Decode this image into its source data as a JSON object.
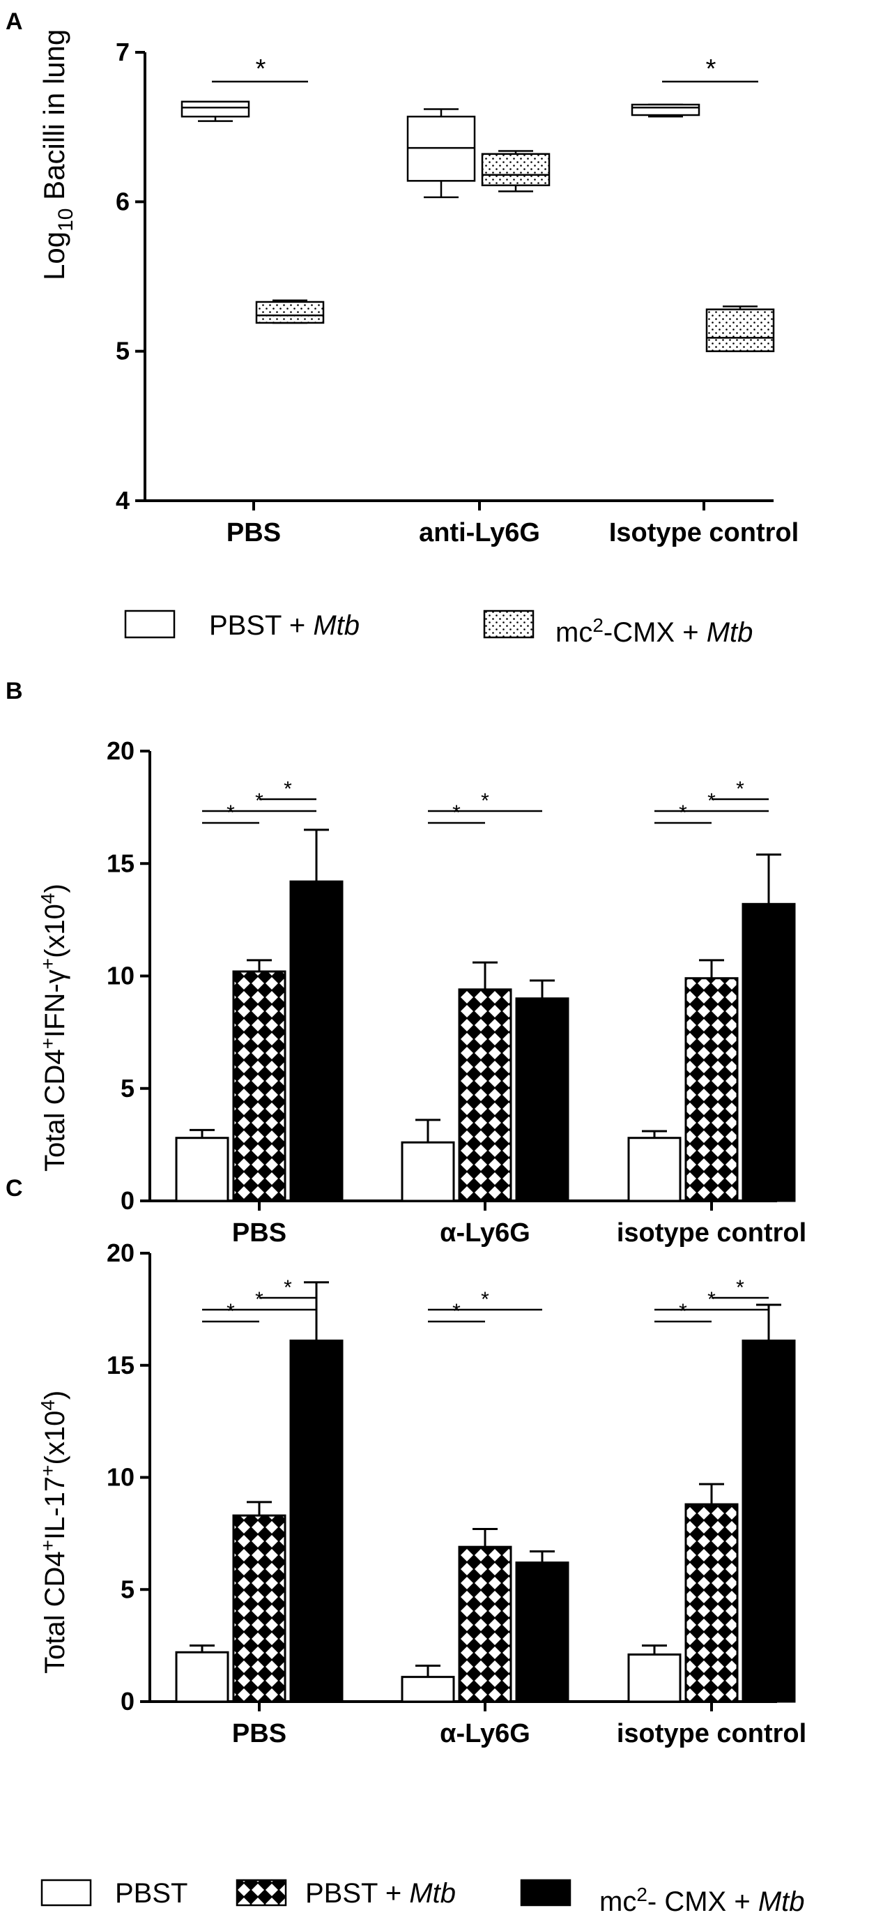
{
  "panels": {
    "A": "A",
    "B": "B",
    "C": "C"
  },
  "colors": {
    "axis": "#000000",
    "pbst": "#ffffff",
    "pbst_mtb": "crosshatch",
    "mc2_cmx_mtb": "#000000"
  },
  "legend_a": {
    "items": [
      {
        "text": "PBST + ",
        "italic": "Mtb",
        "swatch": "open-box"
      },
      {
        "text": "mc",
        "sup": "2",
        "text2": "-CMX + ",
        "italic": "Mtb",
        "swatch": "dotted-box"
      }
    ]
  },
  "legend_bottom": {
    "items": [
      {
        "text": "PBST",
        "swatch": "open"
      },
      {
        "text": "PBST + ",
        "italic": "Mtb",
        "swatch": "crosshatch"
      },
      {
        "text": "mc",
        "sup": "2",
        "text2": "- CMX + ",
        "italic": "Mtb",
        "swatch": "solid"
      }
    ]
  },
  "chart_data": [
    {
      "panel": "A",
      "type": "box",
      "ylabel": "Log10 Bacilli in lung",
      "ylabel_parts": {
        "pre": "Log",
        "sub": "10",
        "post": " Bacilli in lung"
      },
      "ylim": [
        4,
        7
      ],
      "yticks": [
        4,
        5,
        6,
        7
      ],
      "categories": [
        "PBS",
        "anti-Ly6G",
        "Isotype control"
      ],
      "series": [
        {
          "name": "PBST + Mtb",
          "boxes": [
            {
              "min": 6.54,
              "q1": 6.57,
              "median": 6.63,
              "q3": 6.67,
              "max": 6.67
            },
            {
              "min": 6.03,
              "q1": 6.14,
              "median": 6.36,
              "q3": 6.57,
              "max": 6.62
            },
            {
              "min": 6.57,
              "q1": 6.58,
              "median": 6.63,
              "q3": 6.65,
              "max": 6.65
            }
          ]
        },
        {
          "name": "mc2-CMX + Mtb",
          "boxes": [
            {
              "min": 5.19,
              "q1": 5.19,
              "median": 5.24,
              "q3": 5.33,
              "max": 5.34
            },
            {
              "min": 6.07,
              "q1": 6.11,
              "median": 6.18,
              "q3": 6.32,
              "max": 6.34
            },
            {
              "min": 5.0,
              "q1": 5.0,
              "median": 5.09,
              "q3": 5.28,
              "max": 5.3
            }
          ]
        }
      ],
      "significance": [
        {
          "group": 0,
          "label": "*"
        },
        {
          "group": 2,
          "label": "*"
        }
      ]
    },
    {
      "panel": "B",
      "type": "bar",
      "ylabel": "Total CD4+IFN-γ+(x104)",
      "ylabel_parts": {
        "pre": "Total CD4",
        "s1": "+",
        "mid": "IFN-γ",
        "s2": "+",
        "post": "(x10",
        "s3": "4",
        "end": ")"
      },
      "ylim": [
        0,
        20
      ],
      "yticks": [
        0,
        5,
        10,
        15,
        20
      ],
      "categories": [
        "PBS",
        "α-Ly6G",
        "isotype control"
      ],
      "series": [
        {
          "name": "PBST",
          "values": [
            2.8,
            2.6,
            2.8
          ],
          "errors": [
            0.35,
            1.0,
            0.3
          ]
        },
        {
          "name": "PBST + Mtb",
          "values": [
            10.2,
            9.4,
            9.9
          ],
          "errors": [
            0.5,
            1.2,
            0.8
          ]
        },
        {
          "name": "mc2- CMX + Mtb",
          "values": [
            14.2,
            9.0,
            13.2
          ],
          "errors": [
            2.3,
            0.8,
            2.2
          ]
        }
      ],
      "significance": [
        {
          "group": 0,
          "from": 0,
          "to": 1,
          "level": 0,
          "label": "*"
        },
        {
          "group": 0,
          "from": 0,
          "to": 2,
          "level": 1,
          "label": "*"
        },
        {
          "group": 0,
          "from": 1,
          "to": 2,
          "level": 2,
          "label": "*"
        },
        {
          "group": 1,
          "from": 0,
          "to": 1,
          "level": 0,
          "label": "*"
        },
        {
          "group": 1,
          "from": 0,
          "to": 2,
          "level": 1,
          "label": "*"
        },
        {
          "group": 2,
          "from": 0,
          "to": 1,
          "level": 0,
          "label": "*"
        },
        {
          "group": 2,
          "from": 0,
          "to": 2,
          "level": 1,
          "label": "*"
        },
        {
          "group": 2,
          "from": 1,
          "to": 2,
          "level": 2,
          "label": "*"
        }
      ]
    },
    {
      "panel": "C",
      "type": "bar",
      "ylabel": "Total CD4+IL-17+(x104)",
      "ylabel_parts": {
        "pre": "Total CD4",
        "s1": "+",
        "mid": "IL-17",
        "s2": "+",
        "post": "(x10",
        "s3": "4",
        "end": ")"
      },
      "ylim": [
        0,
        20
      ],
      "yticks": [
        0,
        5,
        10,
        15,
        20
      ],
      "categories": [
        "PBS",
        "α-Ly6G",
        "isotype control"
      ],
      "series": [
        {
          "name": "PBST",
          "values": [
            2.2,
            1.1,
            2.1
          ],
          "errors": [
            0.3,
            0.5,
            0.4
          ]
        },
        {
          "name": "PBST + Mtb",
          "values": [
            8.3,
            6.9,
            8.8
          ],
          "errors": [
            0.6,
            0.8,
            0.9
          ]
        },
        {
          "name": "mc2- CMX + Mtb",
          "values": [
            16.1,
            6.2,
            16.1
          ],
          "errors": [
            2.6,
            0.5,
            1.6
          ]
        }
      ],
      "significance": [
        {
          "group": 0,
          "from": 0,
          "to": 1,
          "level": 0,
          "label": "*"
        },
        {
          "group": 0,
          "from": 0,
          "to": 2,
          "level": 1,
          "label": "*"
        },
        {
          "group": 0,
          "from": 1,
          "to": 2,
          "level": 2,
          "label": "*"
        },
        {
          "group": 1,
          "from": 0,
          "to": 1,
          "level": 0,
          "label": "*"
        },
        {
          "group": 1,
          "from": 0,
          "to": 2,
          "level": 1,
          "label": "*"
        },
        {
          "group": 2,
          "from": 0,
          "to": 1,
          "level": 0,
          "label": "*"
        },
        {
          "group": 2,
          "from": 0,
          "to": 2,
          "level": 1,
          "label": "*"
        },
        {
          "group": 2,
          "from": 1,
          "to": 2,
          "level": 2,
          "label": "*"
        }
      ]
    }
  ]
}
